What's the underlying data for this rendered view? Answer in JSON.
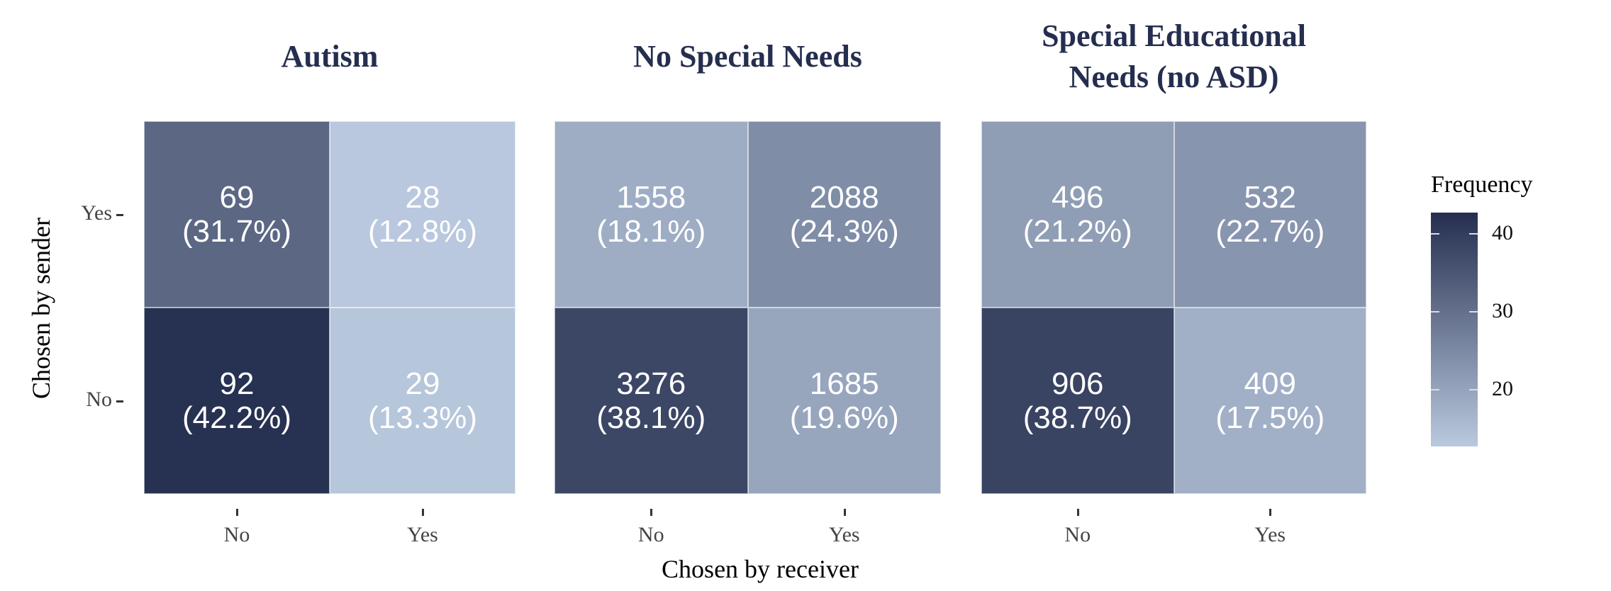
{
  "chart_data": {
    "type": "heatmap",
    "xlabel": "Chosen by receiver",
    "ylabel": "Chosen by sender",
    "x_categories": [
      "No",
      "Yes"
    ],
    "y_categories": [
      "Yes",
      "No"
    ],
    "legend": {
      "title": "Frequency",
      "ticks": [
        "40",
        "30",
        "20"
      ],
      "tick_values": [
        40,
        30,
        20
      ],
      "range": [
        12.7,
        42.7
      ],
      "low_color": "#b9c9de",
      "high_color": "#252e4f",
      "placement": "right"
    },
    "panels": [
      {
        "title": "Autism",
        "cells": [
          {
            "sender": "Yes",
            "receiver": "No",
            "count": "69",
            "percent": "(31.7%)",
            "value": 31.7
          },
          {
            "sender": "Yes",
            "receiver": "Yes",
            "count": "28",
            "percent": "(12.8%)",
            "value": 12.8
          },
          {
            "sender": "No",
            "receiver": "No",
            "count": "92",
            "percent": "(42.2%)",
            "value": 42.2
          },
          {
            "sender": "No",
            "receiver": "Yes",
            "count": "29",
            "percent": "(13.3%)",
            "value": 13.3
          }
        ]
      },
      {
        "title": "No Special Needs",
        "cells": [
          {
            "sender": "Yes",
            "receiver": "No",
            "count": "1558",
            "percent": "(18.1%)",
            "value": 18.1
          },
          {
            "sender": "Yes",
            "receiver": "Yes",
            "count": "2088",
            "percent": "(24.3%)",
            "value": 24.3
          },
          {
            "sender": "No",
            "receiver": "No",
            "count": "3276",
            "percent": "(38.1%)",
            "value": 38.1
          },
          {
            "sender": "No",
            "receiver": "Yes",
            "count": "1685",
            "percent": "(19.6%)",
            "value": 19.6
          }
        ]
      },
      {
        "title": "Special Educational\nNeeds (no ASD)",
        "cells": [
          {
            "sender": "Yes",
            "receiver": "No",
            "count": "496",
            "percent": "(21.2%)",
            "value": 21.2
          },
          {
            "sender": "Yes",
            "receiver": "Yes",
            "count": "532",
            "percent": "(22.7%)",
            "value": 22.7
          },
          {
            "sender": "No",
            "receiver": "No",
            "count": "906",
            "percent": "(38.7%)",
            "value": 38.7
          },
          {
            "sender": "No",
            "receiver": "Yes",
            "count": "409",
            "percent": "(17.5%)",
            "value": 17.5
          }
        ]
      }
    ]
  }
}
